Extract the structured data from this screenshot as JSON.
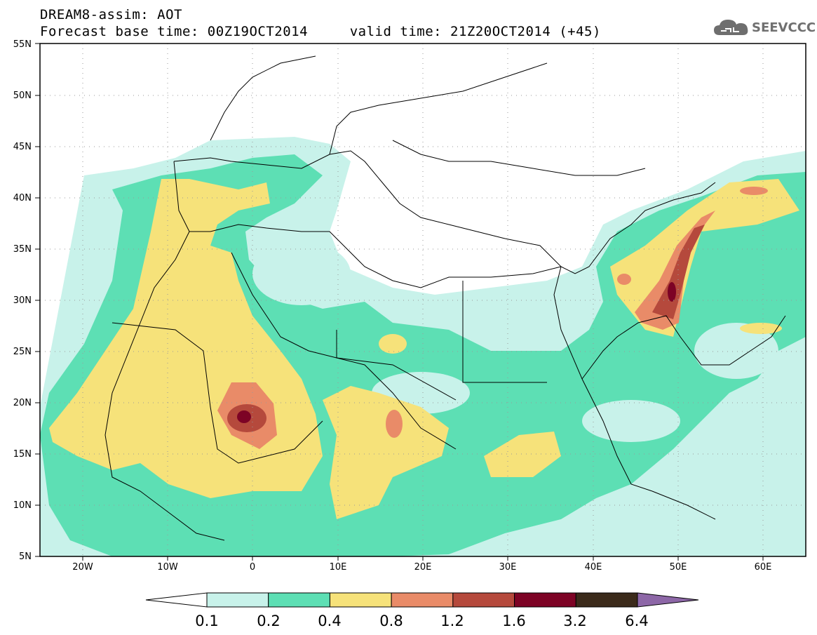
{
  "header": {
    "title": "DREAM8-assim: AOT",
    "forecast_line": "Forecast base time: 00Z19OCT2014     valid time: 21Z20OCT2014 (+45)"
  },
  "logo": {
    "text": "SEEVCCC",
    "icon": "cloud-icon"
  },
  "map": {
    "lon_range": [
      -25,
      65
    ],
    "lat_range": [
      5,
      55
    ],
    "lat_labels": [
      "5N",
      "10N",
      "15N",
      "20N",
      "25N",
      "30N",
      "35N",
      "40N",
      "45N",
      "50N",
      "55N"
    ],
    "lon_labels": [
      "20W",
      "10W",
      "0",
      "10E",
      "20E",
      "30E",
      "40E",
      "50E",
      "60E"
    ]
  },
  "colorbar": {
    "labels": [
      "0.1",
      "0.2",
      "0.4",
      "0.8",
      "1.2",
      "1.6",
      "3.2",
      "6.4"
    ],
    "colors": [
      "#ffffff",
      "#c8f2ea",
      "#5ddfb4",
      "#f6e27a",
      "#e98b68",
      "#b5493c",
      "#7d0325",
      "#3b2a1a",
      "#8d67a7"
    ]
  },
  "colors": {
    "lightcyan": "#c8f2ea",
    "green": "#5ddfb4",
    "yellow": "#f6e27a",
    "orange": "#e98b68",
    "brick": "#b5493c",
    "maroon": "#7d0325"
  }
}
